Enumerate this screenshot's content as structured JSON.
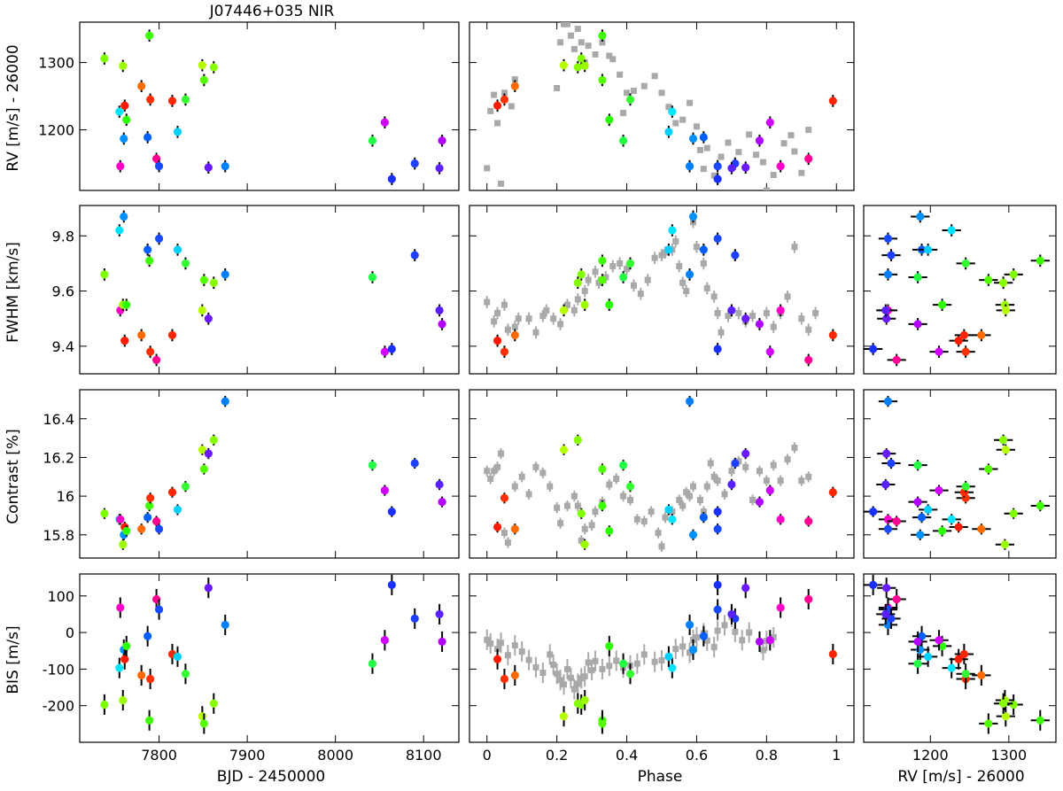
{
  "figure": {
    "title": "J07446+035 NIR",
    "xlabels": [
      "BJD - 2450000",
      "Phase",
      "RV [m/s] - 26000"
    ],
    "ylabels": [
      "RV [m/s] - 26000",
      "FWHM [km/s]",
      "Contrast [%]",
      "BIS [m/s]"
    ]
  },
  "chart_data": {
    "type": "scatter",
    "title": "J07446+035 NIR",
    "description_layout": "4x3 grid of scatter panels; color encodes observation epoch (rainbow); gray squares are phase-folded comparison data",
    "columns": [
      {
        "xlabel": "BJD - 2450000",
        "xlim": [
          7710,
          8140
        ],
        "xticks": [
          7800,
          7900,
          8000,
          8100
        ]
      },
      {
        "xlabel": "Phase",
        "xlim": [
          -0.05,
          1.05
        ],
        "xticks": [
          0.0,
          0.2,
          0.4,
          0.6,
          0.8,
          1.0
        ]
      },
      {
        "xlabel": "RV [m/s] - 26000",
        "xlim": [
          1115,
          1360
        ],
        "xticks": [
          1200,
          1300
        ]
      }
    ],
    "rows": [
      {
        "ylabel": "RV [m/s] - 26000",
        "ylim": [
          1110,
          1360
        ],
        "yticks": [
          1200,
          1300
        ]
      },
      {
        "ylabel": "FWHM [km/s]",
        "ylim": [
          9.3,
          9.91
        ],
        "yticks": [
          9.4,
          9.6,
          9.8
        ]
      },
      {
        "ylabel": "Contrast [%]",
        "ylim": [
          15.68,
          16.55
        ],
        "yticks": [
          15.8,
          16.0,
          16.2,
          16.4
        ]
      },
      {
        "ylabel": "BIS [m/s]",
        "ylim": [
          -300,
          160
        ],
        "yticks": [
          -200,
          -100,
          0,
          100
        ]
      }
    ],
    "series": [
      {
        "color": "#7fff00",
        "bjd": 7738,
        "phase": 0.27,
        "rv": 1306,
        "fwhm": 9.66,
        "contrast": 15.91,
        "bis": -197
      },
      {
        "color": "#00e5ff",
        "bjd": 7755,
        "phase": 0.53,
        "rv": 1227,
        "fwhm": 9.82,
        "contrast": 15.88,
        "bis": -97
      },
      {
        "color": "#ff00c8",
        "bjd": 7756,
        "phase": 0.84,
        "rv": 1146,
        "fwhm": 9.53,
        "contrast": 15.88,
        "bis": 68
      },
      {
        "color": "#9cff00",
        "bjd": 7759,
        "phase": 0.28,
        "rv": 1295,
        "fwhm": 9.55,
        "contrast": 15.75,
        "bis": -185
      },
      {
        "color": "#0090ff",
        "bjd": 7760,
        "phase": 0.59,
        "rv": 1187,
        "fwhm": 9.87,
        "contrast": 15.8,
        "bis": -47
      },
      {
        "color": "#ff1a00",
        "bjd": 7761,
        "phase": 0.03,
        "rv": 1236,
        "fwhm": 9.42,
        "contrast": 15.84,
        "bis": -73
      },
      {
        "color": "#2dff00",
        "bjd": 7763,
        "phase": 0.35,
        "rv": 1215,
        "fwhm": 9.55,
        "contrast": 15.82,
        "bis": -37
      },
      {
        "color": "#ff6a00",
        "bjd": 7780,
        "phase": 0.08,
        "rv": 1265,
        "fwhm": 9.44,
        "contrast": 15.83,
        "bis": -117
      },
      {
        "color": "#0060ff",
        "bjd": 7787,
        "phase": 0.62,
        "rv": 1189,
        "fwhm": 9.75,
        "contrast": 15.89,
        "bis": -10
      },
      {
        "color": "#3cff00",
        "bjd": 7789,
        "phase": 0.33,
        "rv": 1340,
        "fwhm": 9.71,
        "contrast": 15.95,
        "bis": -240
      },
      {
        "color": "#ff3000",
        "bjd": 7790,
        "phase": 0.05,
        "rv": 1245,
        "fwhm": 9.38,
        "contrast": 15.99,
        "bis": -127
      },
      {
        "color": "#ff0090",
        "bjd": 7797,
        "phase": 0.92,
        "rv": 1157,
        "fwhm": 9.35,
        "contrast": 15.87,
        "bis": 91
      },
      {
        "color": "#1a4aff",
        "bjd": 7800,
        "phase": 0.66,
        "rv": 1146,
        "fwhm": 9.79,
        "contrast": 15.83,
        "bis": 63
      },
      {
        "color": "#ff2500",
        "bjd": 7815,
        "phase": 0.99,
        "rv": 1243,
        "fwhm": 9.44,
        "contrast": 16.02,
        "bis": -59
      },
      {
        "color": "#00d0ff",
        "bjd": 7821,
        "phase": 0.52,
        "rv": 1197,
        "fwhm": 9.75,
        "contrast": 15.93,
        "bis": -66
      },
      {
        "color": "#33ff33",
        "bjd": 7830,
        "phase": 0.41,
        "rv": 1245,
        "fwhm": 9.7,
        "contrast": 16.05,
        "bis": -113
      },
      {
        "color": "#b5ff00",
        "bjd": 7849,
        "phase": 0.22,
        "rv": 1296,
        "fwhm": 9.53,
        "contrast": 16.24,
        "bis": -229
      },
      {
        "color": "#55ff00",
        "bjd": 7851,
        "phase": 0.33,
        "rv": 1274,
        "fwhm": 9.64,
        "contrast": 16.14,
        "bis": -249
      },
      {
        "color": "#6a1aff",
        "bjd": 7856,
        "phase": 0.74,
        "rv": 1144,
        "fwhm": 9.5,
        "contrast": 16.22,
        "bis": 122
      },
      {
        "color": "#88ff00",
        "bjd": 7862,
        "phase": 0.26,
        "rv": 1293,
        "fwhm": 9.63,
        "contrast": 16.29,
        "bis": -194
      },
      {
        "color": "#0080ff",
        "bjd": 7875,
        "phase": 0.58,
        "rv": 1146,
        "fwhm": 9.66,
        "contrast": 16.49,
        "bis": 21
      },
      {
        "color": "#22ff44",
        "bjd": 8042,
        "phase": 0.39,
        "rv": 1184,
        "fwhm": 9.65,
        "contrast": 16.16,
        "bis": -85
      },
      {
        "color": "#d000ff",
        "bjd": 8056,
        "phase": 0.81,
        "rv": 1211,
        "fwhm": 9.38,
        "contrast": 16.03,
        "bis": -21
      },
      {
        "color": "#1a30ff",
        "bjd": 8064,
        "phase": 0.66,
        "rv": 1127,
        "fwhm": 9.39,
        "contrast": 15.92,
        "bis": 130
      },
      {
        "color": "#2040ff",
        "bjd": 8090,
        "phase": 0.71,
        "rv": 1150,
        "fwhm": 9.73,
        "contrast": 16.17,
        "bis": 38
      },
      {
        "color": "#5a20ff",
        "bjd": 8118,
        "phase": 0.7,
        "rv": 1143,
        "fwhm": 9.53,
        "contrast": 16.06,
        "bis": 50
      },
      {
        "color": "#b000ff",
        "bjd": 8121,
        "phase": 0.78,
        "rv": 1184,
        "fwhm": 9.48,
        "contrast": 15.97,
        "bis": -25
      }
    ],
    "comparison_series": {
      "color": "#a9a9a9",
      "marker": "square",
      "rv": [
        [
          0.0,
          1143
        ],
        [
          0.01,
          1228
        ],
        [
          0.02,
          1252
        ],
        [
          0.03,
          1210
        ],
        [
          0.04,
          1120
        ],
        [
          0.05,
          1255
        ],
        [
          0.07,
          1235
        ],
        [
          0.08,
          1275
        ],
        [
          0.2,
          1262
        ],
        [
          0.21,
          1330
        ],
        [
          0.22,
          1357
        ],
        [
          0.23,
          1357
        ],
        [
          0.24,
          1340
        ],
        [
          0.25,
          1320
        ],
        [
          0.26,
          1350
        ],
        [
          0.27,
          1330
        ],
        [
          0.28,
          1300
        ],
        [
          0.29,
          1325
        ],
        [
          0.31,
          1312
        ],
        [
          0.33,
          1330
        ],
        [
          0.35,
          1310
        ],
        [
          0.36,
          1305
        ],
        [
          0.38,
          1282
        ],
        [
          0.39,
          1225
        ],
        [
          0.4,
          1255
        ],
        [
          0.42,
          1258
        ],
        [
          0.45,
          1265
        ],
        [
          0.48,
          1280
        ],
        [
          0.5,
          1255
        ],
        [
          0.52,
          1234
        ],
        [
          0.54,
          1210
        ],
        [
          0.56,
          1215
        ],
        [
          0.58,
          1240
        ],
        [
          0.6,
          1205
        ],
        [
          0.61,
          1170
        ],
        [
          0.62,
          1142
        ],
        [
          0.63,
          1173
        ],
        [
          0.65,
          1132
        ],
        [
          0.67,
          1160
        ],
        [
          0.69,
          1181
        ],
        [
          0.72,
          1167
        ],
        [
          0.75,
          1193
        ],
        [
          0.77,
          1163
        ],
        [
          0.79,
          1152
        ],
        [
          0.8,
          1110
        ],
        [
          0.82,
          1133
        ],
        [
          0.85,
          1180
        ],
        [
          0.87,
          1192
        ],
        [
          0.88,
          1168
        ],
        [
          0.9,
          1136
        ],
        [
          0.92,
          1200
        ]
      ],
      "fwhm": [
        [
          0.0,
          9.56
        ],
        [
          0.02,
          9.49
        ],
        [
          0.03,
          9.52
        ],
        [
          0.05,
          9.55
        ],
        [
          0.06,
          9.46
        ],
        [
          0.08,
          9.47
        ],
        [
          0.09,
          9.5
        ],
        [
          0.12,
          9.5
        ],
        [
          0.14,
          9.45
        ],
        [
          0.16,
          9.51
        ],
        [
          0.17,
          9.53
        ],
        [
          0.19,
          9.5
        ],
        [
          0.21,
          9.48
        ],
        [
          0.23,
          9.55
        ],
        [
          0.25,
          9.53
        ],
        [
          0.26,
          9.57
        ],
        [
          0.28,
          9.6
        ],
        [
          0.29,
          9.64
        ],
        [
          0.31,
          9.67
        ],
        [
          0.32,
          9.63
        ],
        [
          0.34,
          9.65
        ],
        [
          0.36,
          9.69
        ],
        [
          0.38,
          9.7
        ],
        [
          0.4,
          9.68
        ],
        [
          0.42,
          9.62
        ],
        [
          0.44,
          9.59
        ],
        [
          0.46,
          9.64
        ],
        [
          0.48,
          9.72
        ],
        [
          0.5,
          9.73
        ],
        [
          0.51,
          9.74
        ],
        [
          0.53,
          9.75
        ],
        [
          0.54,
          9.78
        ],
        [
          0.55,
          9.69
        ],
        [
          0.56,
          9.63
        ],
        [
          0.57,
          9.6
        ],
        [
          0.59,
          9.85
        ],
        [
          0.6,
          9.76
        ],
        [
          0.62,
          9.7
        ],
        [
          0.63,
          9.61
        ],
        [
          0.65,
          9.58
        ],
        [
          0.66,
          9.52
        ],
        [
          0.67,
          9.45
        ],
        [
          0.69,
          9.51
        ],
        [
          0.72,
          9.52
        ],
        [
          0.74,
          9.49
        ],
        [
          0.76,
          9.51
        ],
        [
          0.78,
          9.48
        ],
        [
          0.8,
          9.52
        ],
        [
          0.82,
          9.47
        ],
        [
          0.84,
          9.52
        ],
        [
          0.86,
          9.58
        ],
        [
          0.88,
          9.76
        ],
        [
          0.9,
          9.5
        ],
        [
          0.92,
          9.46
        ],
        [
          0.94,
          9.52
        ]
      ],
      "contrast": [
        [
          0.0,
          16.13
        ],
        [
          0.01,
          16.09
        ],
        [
          0.02,
          16.13
        ],
        [
          0.03,
          16.15
        ],
        [
          0.04,
          16.22
        ],
        [
          0.05,
          15.81
        ],
        [
          0.06,
          15.76
        ],
        [
          0.08,
          16.05
        ],
        [
          0.1,
          16.1
        ],
        [
          0.12,
          16.01
        ],
        [
          0.14,
          16.15
        ],
        [
          0.16,
          16.12
        ],
        [
          0.18,
          16.05
        ],
        [
          0.2,
          15.94
        ],
        [
          0.21,
          15.86
        ],
        [
          0.23,
          15.95
        ],
        [
          0.25,
          16.0
        ],
        [
          0.26,
          15.95
        ],
        [
          0.27,
          15.77
        ],
        [
          0.28,
          15.83
        ],
        [
          0.3,
          15.85
        ],
        [
          0.31,
          15.92
        ],
        [
          0.33,
          15.97
        ],
        [
          0.35,
          16.06
        ],
        [
          0.37,
          16.09
        ],
        [
          0.39,
          16.0
        ],
        [
          0.41,
          15.98
        ],
        [
          0.43,
          15.88
        ],
        [
          0.45,
          15.87
        ],
        [
          0.47,
          15.92
        ],
        [
          0.49,
          15.81
        ],
        [
          0.5,
          15.74
        ],
        [
          0.51,
          15.89
        ],
        [
          0.53,
          15.92
        ],
        [
          0.55,
          15.98
        ],
        [
          0.56,
          15.95
        ],
        [
          0.57,
          16.02
        ],
        [
          0.58,
          16.0
        ],
        [
          0.59,
          16.05
        ],
        [
          0.61,
          15.98
        ],
        [
          0.62,
          15.92
        ],
        [
          0.63,
          16.05
        ],
        [
          0.64,
          16.17
        ],
        [
          0.65,
          16.1
        ],
        [
          0.66,
          16.08
        ],
        [
          0.68,
          16.01
        ],
        [
          0.7,
          16.13
        ],
        [
          0.72,
          16.18
        ],
        [
          0.74,
          16.15
        ],
        [
          0.76,
          15.98
        ],
        [
          0.78,
          16.13
        ],
        [
          0.8,
          16.08
        ],
        [
          0.82,
          16.16
        ],
        [
          0.84,
          16.08
        ],
        [
          0.86,
          16.19
        ],
        [
          0.88,
          16.25
        ],
        [
          0.9,
          16.08
        ],
        [
          0.92,
          16.1
        ]
      ],
      "bis": [
        [
          0.0,
          -20
        ],
        [
          0.01,
          -30
        ],
        [
          0.03,
          -45
        ],
        [
          0.04,
          -28
        ],
        [
          0.06,
          -62
        ],
        [
          0.08,
          -35
        ],
        [
          0.1,
          -52
        ],
        [
          0.12,
          -75
        ],
        [
          0.14,
          -95
        ],
        [
          0.16,
          -110
        ],
        [
          0.18,
          -60
        ],
        [
          0.19,
          -88
        ],
        [
          0.2,
          -113
        ],
        [
          0.21,
          -130
        ],
        [
          0.22,
          -142
        ],
        [
          0.23,
          -100
        ],
        [
          0.24,
          -124
        ],
        [
          0.25,
          -155
        ],
        [
          0.26,
          -140
        ],
        [
          0.27,
          -125
        ],
        [
          0.28,
          -120
        ],
        [
          0.29,
          -82
        ],
        [
          0.3,
          -103
        ],
        [
          0.31,
          -78
        ],
        [
          0.33,
          -100
        ],
        [
          0.35,
          -91
        ],
        [
          0.37,
          -77
        ],
        [
          0.39,
          -96
        ],
        [
          0.41,
          -90
        ],
        [
          0.43,
          -85
        ],
        [
          0.45,
          -60
        ],
        [
          0.48,
          -80
        ],
        [
          0.5,
          -76
        ],
        [
          0.52,
          -65
        ],
        [
          0.54,
          -45
        ],
        [
          0.56,
          -38
        ],
        [
          0.58,
          -55
        ],
        [
          0.59,
          -20
        ],
        [
          0.6,
          -13
        ],
        [
          0.62,
          -2
        ],
        [
          0.63,
          -22
        ],
        [
          0.65,
          -40
        ],
        [
          0.66,
          5
        ],
        [
          0.68,
          20
        ],
        [
          0.7,
          43
        ],
        [
          0.71,
          2
        ],
        [
          0.73,
          -21
        ],
        [
          0.75,
          0
        ],
        [
          0.78,
          -25
        ],
        [
          0.79,
          -48
        ],
        [
          0.8,
          -23
        ],
        [
          0.82,
          -13
        ]
      ]
    }
  }
}
